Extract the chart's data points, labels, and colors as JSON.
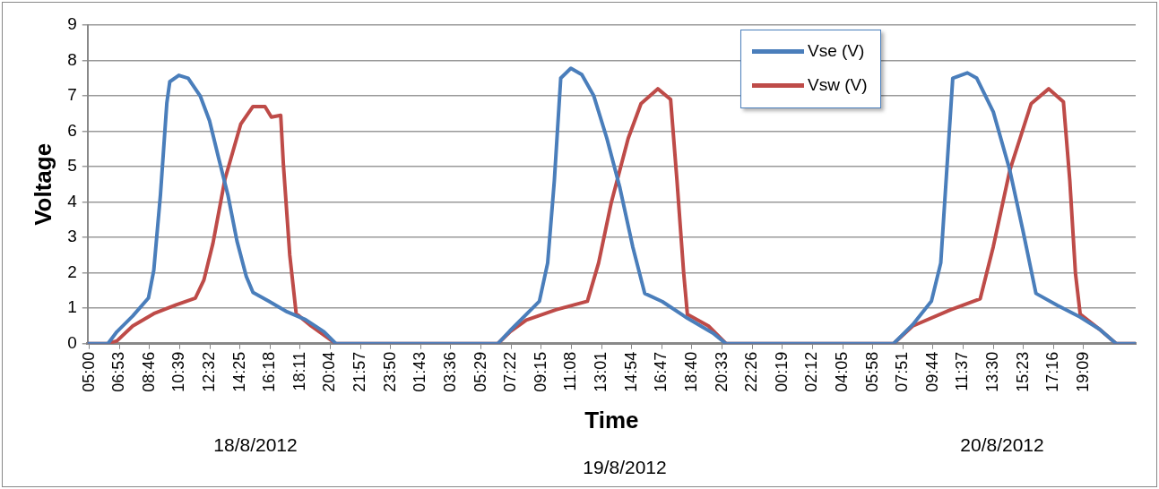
{
  "chart_data": {
    "type": "line",
    "xlabel": "Time",
    "ylabel": "Voltage",
    "xlim": [
      "2012-08-18T04:54",
      "2012-08-20T22:24"
    ],
    "ylim": [
      0,
      9
    ],
    "yticks": [
      0,
      1,
      2,
      3,
      4,
      5,
      6,
      7,
      8,
      9
    ],
    "xticks": [
      {
        "value": "2012-08-18T05:00",
        "label": "05:00"
      },
      {
        "value": "2012-08-18T06:53",
        "label": "06:53"
      },
      {
        "value": "2012-08-18T08:46",
        "label": "08:46"
      },
      {
        "value": "2012-08-18T10:39",
        "label": "10:39"
      },
      {
        "value": "2012-08-18T12:32",
        "label": "12:32"
      },
      {
        "value": "2012-08-18T14:25",
        "label": "14:25"
      },
      {
        "value": "2012-08-18T16:18",
        "label": "16:18"
      },
      {
        "value": "2012-08-18T18:11",
        "label": "18:11"
      },
      {
        "value": "2012-08-18T20:04",
        "label": "20:04"
      },
      {
        "value": "2012-08-18T21:57",
        "label": "21:57"
      },
      {
        "value": "2012-08-18T23:50",
        "label": "23:50"
      },
      {
        "value": "2012-08-19T01:43",
        "label": "01:43"
      },
      {
        "value": "2012-08-19T03:36",
        "label": "03:36"
      },
      {
        "value": "2012-08-19T05:29",
        "label": "05:29"
      },
      {
        "value": "2012-08-19T07:22",
        "label": "07:22"
      },
      {
        "value": "2012-08-19T09:15",
        "label": "09:15"
      },
      {
        "value": "2012-08-19T11:08",
        "label": "11:08"
      },
      {
        "value": "2012-08-19T13:01",
        "label": "13:01"
      },
      {
        "value": "2012-08-19T14:54",
        "label": "14:54"
      },
      {
        "value": "2012-08-19T16:47",
        "label": "16:47"
      },
      {
        "value": "2012-08-19T18:40",
        "label": "18:40"
      },
      {
        "value": "2012-08-19T20:33",
        "label": "20:33"
      },
      {
        "value": "2012-08-19T22:26",
        "label": "22:26"
      },
      {
        "value": "2012-08-20T00:19",
        "label": "00:19"
      },
      {
        "value": "2012-08-20T02:12",
        "label": "02:12"
      },
      {
        "value": "2012-08-20T04:05",
        "label": "04:05"
      },
      {
        "value": "2012-08-20T05:58",
        "label": "05:58"
      },
      {
        "value": "2012-08-20T07:51",
        "label": "07:51"
      },
      {
        "value": "2012-08-20T09:44",
        "label": "09:44"
      },
      {
        "value": "2012-08-20T11:37",
        "label": "11:37"
      },
      {
        "value": "2012-08-20T13:30",
        "label": "13:30"
      },
      {
        "value": "2012-08-20T15:23",
        "label": "15:23"
      },
      {
        "value": "2012-08-20T17:16",
        "label": "17:16"
      },
      {
        "value": "2012-08-20T19:09",
        "label": "19:09"
      }
    ],
    "grid": "y",
    "legend": "top right",
    "marker": "none",
    "line_style": "solid",
    "annotations": [
      "18/8/2012",
      "19/8/2012",
      "20/8/2012"
    ],
    "series": [
      {
        "name": "Vse (V)",
        "color": "#4a7ebb",
        "x": [
          "2012-08-18T04:54",
          "2012-08-18T06:10",
          "2012-08-18T06:44",
          "2012-08-18T07:43",
          "2012-08-18T08:42",
          "2012-08-18T09:02",
          "2012-08-18T09:27",
          "2012-08-18T09:51",
          "2012-08-18T10:02",
          "2012-08-18T10:36",
          "2012-08-18T11:11",
          "2012-08-18T11:56",
          "2012-08-18T12:31",
          "2012-08-18T13:05",
          "2012-08-18T13:40",
          "2012-08-18T14:14",
          "2012-08-18T14:49",
          "2012-08-18T15:14",
          "2012-08-18T16:13",
          "2012-08-18T17:22",
          "2012-08-18T18:31",
          "2012-08-18T19:40",
          "2012-08-18T20:25",
          "2012-08-19T06:32",
          "2012-08-19T07:17",
          "2012-08-19T09:08",
          "2012-08-19T09:39",
          "2012-08-19T10:04",
          "2012-08-19T10:28",
          "2012-08-19T11:06",
          "2012-08-19T11:47",
          "2012-08-19T12:32",
          "2012-08-19T13:21",
          "2012-08-19T14:10",
          "2012-08-19T14:58",
          "2012-08-19T15:43",
          "2012-08-19T16:49",
          "2012-08-19T18:23",
          "2012-08-19T19:59",
          "2012-08-19T20:48",
          "2012-08-20T07:16",
          "2012-08-20T08:28",
          "2012-08-20T09:38",
          "2012-08-20T10:13",
          "2012-08-20T10:33",
          "2012-08-20T10:58",
          "2012-08-20T11:53",
          "2012-08-20T12:28",
          "2012-08-20T13:30",
          "2012-08-20T14:32",
          "2012-08-20T15:21",
          "2012-08-20T16:10",
          "2012-08-20T17:29",
          "2012-08-20T18:49",
          "2012-08-20T20:08",
          "2012-08-20T21:11",
          "2012-08-20T22:24"
        ],
        "values": [
          0,
          0,
          0.34,
          0.78,
          1.29,
          2.07,
          4.2,
          6.8,
          7.4,
          7.58,
          7.5,
          7.0,
          6.3,
          5.25,
          4.2,
          2.9,
          1.9,
          1.45,
          1.2,
          0.9,
          0.68,
          0.34,
          0,
          0,
          0.36,
          1.2,
          2.28,
          4.6,
          7.5,
          7.78,
          7.6,
          7.0,
          5.8,
          4.4,
          2.74,
          1.42,
          1.19,
          0.72,
          0.3,
          0,
          0,
          0.54,
          1.2,
          2.28,
          4.6,
          7.5,
          7.65,
          7.5,
          6.55,
          4.9,
          3.2,
          1.42,
          1.09,
          0.78,
          0.41,
          0,
          0
        ]
      },
      {
        "name": "Vsw (V)",
        "color": "#be4b48",
        "x": [
          "2012-08-18T04:54",
          "2012-08-18T06:10",
          "2012-08-18T06:44",
          "2012-08-18T07:43",
          "2012-08-18T09:02",
          "2012-08-18T10:26",
          "2012-08-18T11:38",
          "2012-08-18T12:10",
          "2012-08-18T12:44",
          "2012-08-18T13:29",
          "2012-08-18T14:28",
          "2012-08-18T15:14",
          "2012-08-18T15:59",
          "2012-08-18T16:23",
          "2012-08-18T16:58",
          "2012-08-18T17:08",
          "2012-08-18T17:32",
          "2012-08-18T17:56",
          "2012-08-18T18:52",
          "2012-08-18T20:25",
          "2012-08-19T06:32",
          "2012-08-19T07:17",
          "2012-08-19T08:19",
          "2012-08-19T10:10",
          "2012-08-19T12:08",
          "2012-08-19T12:50",
          "2012-08-19T13:38",
          "2012-08-19T14:41",
          "2012-08-19T15:29",
          "2012-08-19T16:32",
          "2012-08-19T17:20",
          "2012-08-19T17:44",
          "2012-08-19T18:09",
          "2012-08-19T18:23",
          "2012-08-19T19:42",
          "2012-08-19T20:48",
          "2012-08-20T07:16",
          "2012-08-20T08:28",
          "2012-08-20T10:50",
          "2012-08-20T12:41",
          "2012-08-20T13:30",
          "2012-08-20T14:32",
          "2012-08-20T15:52",
          "2012-08-20T16:58",
          "2012-08-20T17:53",
          "2012-08-20T18:17",
          "2012-08-20T18:38",
          "2012-08-20T18:56",
          "2012-08-20T20:08",
          "2012-08-20T21:11",
          "2012-08-20T22:24"
        ],
        "values": [
          0,
          0,
          0.08,
          0.5,
          0.85,
          1.1,
          1.29,
          1.8,
          2.84,
          4.65,
          6.2,
          6.7,
          6.7,
          6.4,
          6.45,
          5.07,
          2.5,
          0.85,
          0.5,
          0,
          0,
          0.33,
          0.67,
          0.96,
          1.2,
          2.28,
          4.0,
          5.8,
          6.78,
          7.2,
          6.9,
          4.6,
          2.0,
          0.83,
          0.5,
          0,
          0,
          0.5,
          0.96,
          1.27,
          2.74,
          4.9,
          6.78,
          7.2,
          6.83,
          4.6,
          2.0,
          0.83,
          0.41,
          0,
          0
        ]
      }
    ]
  }
}
